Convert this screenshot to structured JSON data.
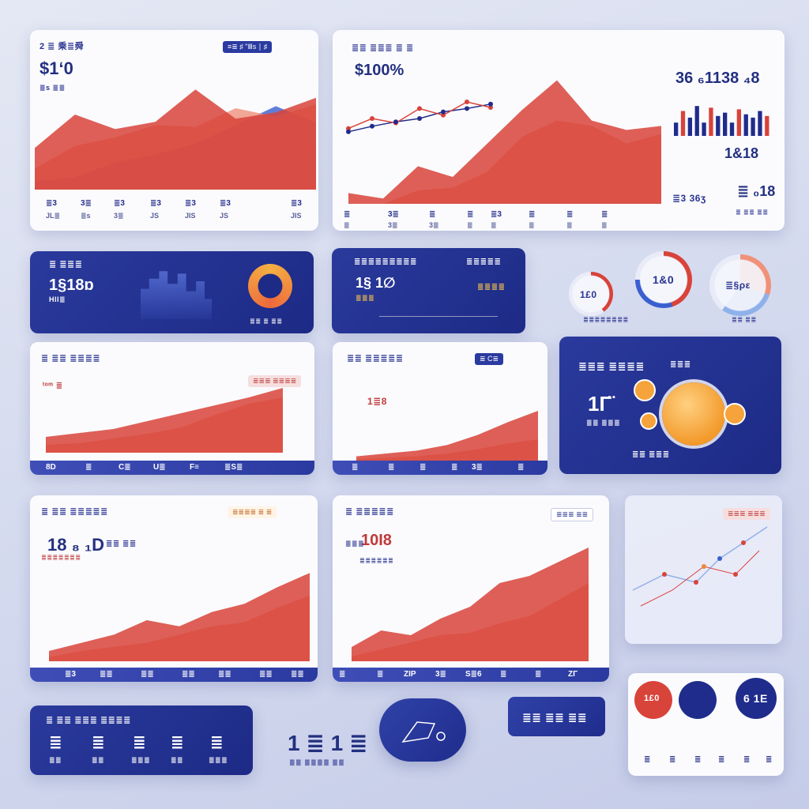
{
  "colors": {
    "red": "#d8433a",
    "salmon": "#f0917a",
    "blue": "#3a5fcf",
    "navy": "#1f2c8c",
    "orange": "#ee8a3c",
    "light": "#8fb1ea"
  },
  "card1": {
    "title": "2 ≣ 乘≣舜",
    "badge": "≡≣ ♯ \"Ⅲs ∣ ♯",
    "big": "$1ʻ0",
    "sub": "≣s ≣≣",
    "ticks_top": [
      "≣3",
      "3≣",
      "≣3",
      "≣3",
      "≣3",
      "≣3",
      "≣3"
    ],
    "ticks_bottom": [
      "JL≣",
      "≣s",
      "3≣",
      "JS",
      "JIS",
      "JS",
      "JIS"
    ]
  },
  "card2": {
    "title": "≣≣ ≣≣≣ ≣ ≣",
    "big": "$100%",
    "ticks_top": [
      "≣",
      "3≣",
      "≣",
      "≣",
      "≣3",
      "≣",
      "≣",
      "≣"
    ],
    "ticks_bottom": [
      "≣",
      "3≣",
      "3≣",
      "≣",
      "≣",
      "≣",
      "≣",
      "≣"
    ]
  },
  "stats": {
    "big": "36 ₆1138 ₄8",
    "mid": "1&18",
    "small1": "≣3 36ʒ",
    "small2": "≣ ₀18",
    "small3": "≣ ≣≣ ≣≣"
  },
  "card3": {
    "title": "≣ ≣≣≣",
    "big": "1§18ɒ",
    "sub": "Hll≣",
    "caption": "≣≣ ≣ ≣≣"
  },
  "card4": {
    "title": "≣≣≣≣≣≣≣≣≣",
    "tag": "≣≣≣≣≣",
    "big": "1§ 1∅",
    "sub": "≣≣≣",
    "label": "≣≣≣≣"
  },
  "donuts": {
    "d1": "1£0",
    "d2": "1&0",
    "d3": "≣§ρε",
    "cap1": "≣≣≣≣≣≣≣≣",
    "cap2": "≣≣ ≣≣"
  },
  "card5": {
    "title": "≣ ≣≣ ≣≣≣≣",
    "tag": "≣≣≣ ≣≣≣≣",
    "label": "ᵗᵒᵐ ≣",
    "ticks": [
      "8D",
      "≣",
      "C≣",
      "U≣",
      "F≡",
      "≣S≣"
    ]
  },
  "card6": {
    "title": "≣≣ ≣≣≣≣≣",
    "badge": "≣ C≣",
    "label": "1≣8",
    "ticks": [
      "≣",
      "≣",
      "≣",
      "≣",
      "3≣",
      "≣"
    ]
  },
  "card7": {
    "title": "≣≣≣ ≣≣≣≣",
    "big": "1Γ̈",
    "sub": "≣≣ ≣≣≣",
    "value": "≣≣≣",
    "foot": "≣≣ ≣≣≣"
  },
  "card8": {
    "title": "≣ ≣≣ ≣≣≣≣≣",
    "big": "18 ₈ ₁D",
    "sub": "≣≣ ≣≣",
    "caption": "≣≣≣≣≣≣≣",
    "badge": "≣≣≣≣ ≣ ≣",
    "ticks": [
      "≣3",
      "≣≣",
      "≣≣",
      "≣≣",
      "≣≣",
      "≣≣",
      "≣≣"
    ]
  },
  "card9": {
    "title": "≣ ≣≣≣≣≣",
    "big": "10I8",
    "sub": "≣≣≣",
    "note": "≣≣≣≣≣≣",
    "badge": "≣≣≣ ≣≣",
    "ticks": [
      "≣",
      "≣",
      "ZIP",
      "3≣",
      "S≣6",
      "≣",
      "≣",
      "ZΓ"
    ]
  },
  "card10": {
    "badge": "≣≣≣ ≣≣≣"
  },
  "card11": {
    "title": "≣ ≣≣ ≣≣≣ ≣≣≣≣",
    "values": [
      "≣",
      "≣",
      "≣",
      "≣",
      "≣"
    ],
    "captions": [
      "≣≣",
      "≣≣",
      "≣≣≣",
      "≣≣",
      "≣≣≣"
    ]
  },
  "mid": {
    "big": "1 ≣ 1 ≣",
    "sub": "≣≣ ≣≣≣≣ ≣≣"
  },
  "pill": {
    "text": "≣≣ ≣≣ ≣≣"
  },
  "circles": {
    "c1": "1£0",
    "c3": "6 1E",
    "ticks": [
      "≣",
      "≣",
      "≣",
      "≣",
      "≣",
      "≣"
    ]
  },
  "chart_data": [
    {
      "type": "area",
      "series": [
        {
          "values": [
            40,
            72,
            58,
            65,
            96,
            68,
            74,
            88
          ]
        },
        {
          "values": [
            20,
            42,
            50,
            62,
            60,
            78,
            70,
            82
          ]
        },
        {
          "values": [
            8,
            12,
            26,
            34,
            44,
            62,
            80,
            64
          ]
        }
      ],
      "ylim": [
        0,
        100
      ]
    },
    {
      "type": "area",
      "series": [
        {
          "values": [
            8,
            4,
            28,
            20,
            45,
            70,
            92,
            62,
            55,
            58
          ]
        },
        {
          "values": [
            0,
            0,
            10,
            12,
            24,
            50,
            62,
            58,
            45,
            52
          ]
        }
      ],
      "ylim": [
        0,
        100
      ]
    },
    {
      "type": "line",
      "series": [
        {
          "values": [
            22,
            40,
            32,
            58,
            46,
            70,
            60
          ]
        },
        {
          "values": [
            16,
            26,
            34,
            40,
            52,
            58,
            66
          ]
        }
      ],
      "ylim": [
        0,
        100
      ]
    },
    {
      "type": "bar",
      "series": [
        {
          "name": "a",
          "values": [
            40,
            75,
            55,
            90,
            40,
            85,
            60,
            70,
            40,
            80,
            65,
            55,
            75,
            60
          ]
        }
      ],
      "ylim": [
        0,
        100
      ]
    },
    {
      "type": "area",
      "series": [
        {
          "values": [
            20,
            25,
            30,
            40,
            50,
            60,
            70,
            82
          ]
        },
        {
          "values": [
            10,
            12,
            18,
            24,
            32,
            48,
            62,
            70
          ]
        }
      ],
      "ylim": [
        0,
        100
      ]
    },
    {
      "type": "area",
      "series": [
        {
          "values": [
            6,
            10,
            14,
            22,
            36,
            54,
            70
          ]
        },
        {
          "values": [
            2,
            4,
            6,
            10,
            16,
            24,
            30
          ]
        }
      ],
      "ylim": [
        0,
        100
      ]
    },
    {
      "type": "area",
      "series": [
        {
          "values": [
            10,
            18,
            26,
            40,
            34,
            48,
            56,
            72,
            86
          ]
        },
        {
          "values": [
            4,
            10,
            14,
            18,
            26,
            34,
            38,
            52,
            64
          ]
        }
      ],
      "ylim": [
        0,
        100
      ]
    },
    {
      "type": "area",
      "series": [
        {
          "values": [
            12,
            26,
            22,
            36,
            46,
            66,
            72,
            84,
            96
          ]
        },
        {
          "values": [
            4,
            10,
            16,
            22,
            24,
            32,
            38,
            52,
            66
          ]
        }
      ],
      "ylim": [
        0,
        100
      ]
    }
  ]
}
